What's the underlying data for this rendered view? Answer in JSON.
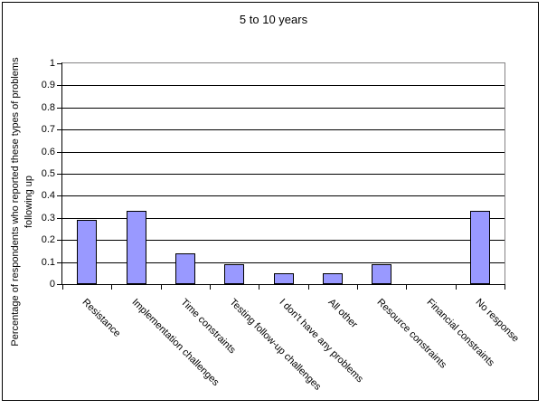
{
  "chart_data": {
    "type": "bar",
    "title": "5 to 10 years",
    "ylabel": "Percentage of respondents who reported these types of problems following up",
    "categories": [
      "Resistance",
      "Implementation challenges",
      "Time constraints",
      "Testing follow-up challenges",
      "I don't have any problems",
      "All other",
      "Resource constraints",
      "Financial constraints",
      "No response"
    ],
    "values": [
      0.29,
      0.33,
      0.14,
      0.09,
      0.05,
      0.05,
      0.09,
      0,
      0.33
    ],
    "ylim": [
      0,
      1
    ],
    "yticks": [
      "0",
      "0.1",
      "0.2",
      "0.3",
      "0.4",
      "0.5",
      "0.6",
      "0.7",
      "0.8",
      "0.9",
      "1"
    ],
    "grid": true,
    "legend": false,
    "xlabel": "",
    "bar_fill": "#9999FF",
    "bar_border": "#000000",
    "gridline_color": "#000000",
    "plot_border_color": "#848284",
    "axis_color": "#000000"
  }
}
